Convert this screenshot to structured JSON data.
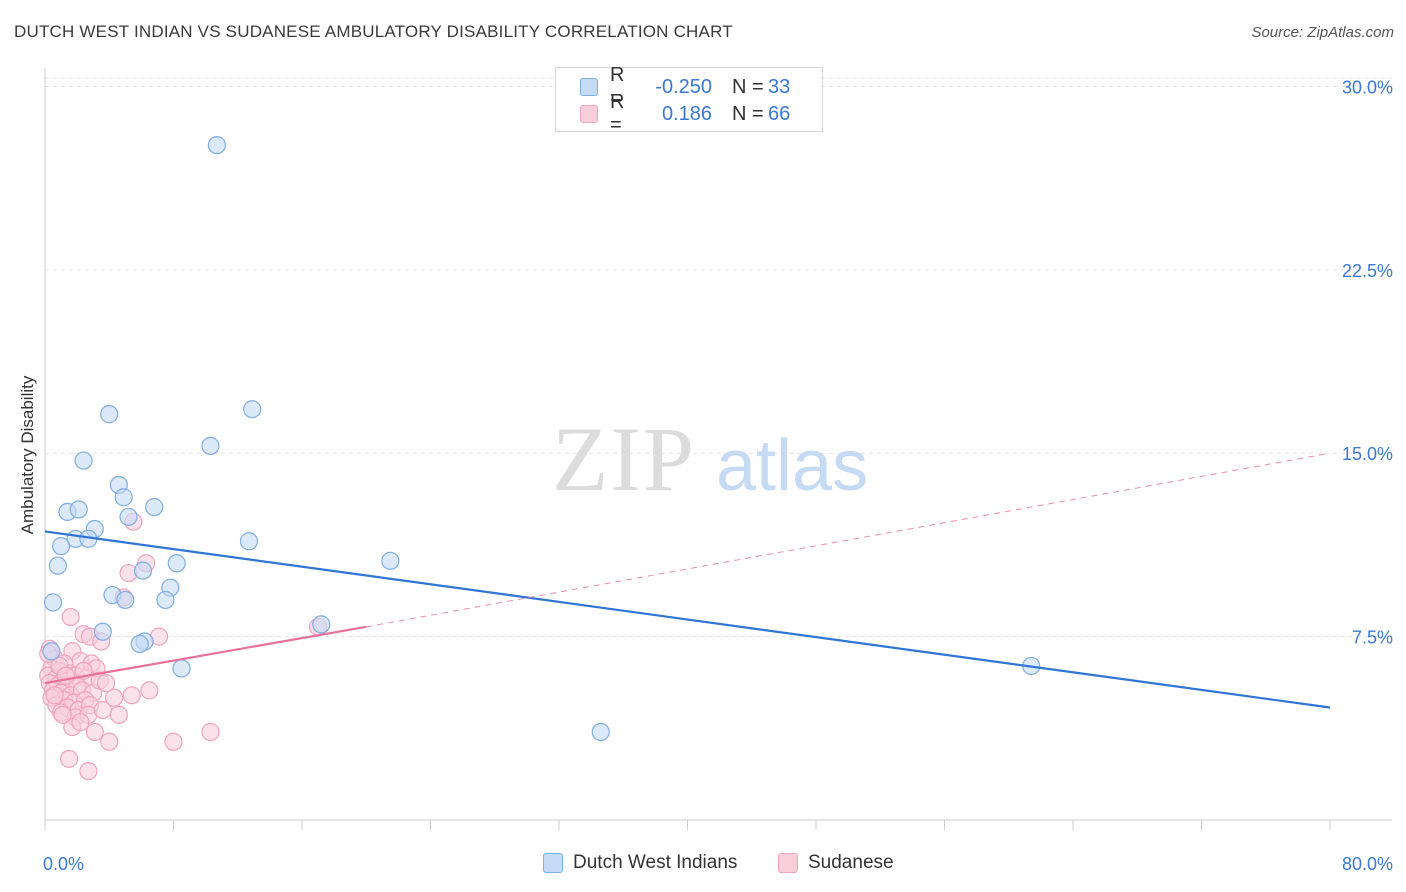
{
  "chart_data": {
    "type": "scatter",
    "title": "DUTCH WEST INDIAN VS SUDANESE AMBULATORY DISABILITY CORRELATION CHART",
    "source": "Source: ZipAtlas.com",
    "xlabel": "",
    "ylabel": "Ambulatory Disability",
    "xlim": [
      0,
      80
    ],
    "ylim": [
      0,
      31
    ],
    "x_tick_labels": [
      "0.0%",
      "80.0%"
    ],
    "y_ticks": [
      {
        "value": 7.5,
        "label": "7.5%"
      },
      {
        "value": 15.0,
        "label": "15.0%"
      },
      {
        "value": 22.5,
        "label": "22.5%"
      },
      {
        "value": 30.0,
        "label": "30.0%"
      }
    ],
    "grid": true,
    "watermark": "ZIPatlas",
    "legend": {
      "position": "top-center",
      "rows": [
        {
          "r_label": "R =",
          "r_value": "-0.250",
          "n_label": "N =",
          "n_value": "33"
        },
        {
          "r_label": "R =",
          "r_value": "0.186",
          "n_label": "N =",
          "n_value": "66"
        }
      ]
    },
    "series": [
      {
        "name": "Dutch West Indians",
        "color": "#7eaee6",
        "fill": "#c5dbf5",
        "line_color": "#2f75d6",
        "trend": {
          "x": [
            0,
            80
          ],
          "y": [
            11.8,
            4.6
          ]
        },
        "points": [
          [
            10.7,
            27.6
          ],
          [
            4.0,
            16.6
          ],
          [
            12.9,
            16.8
          ],
          [
            2.4,
            14.7
          ],
          [
            10.3,
            15.3
          ],
          [
            4.6,
            13.7
          ],
          [
            4.9,
            13.2
          ],
          [
            1.4,
            12.6
          ],
          [
            2.1,
            12.7
          ],
          [
            6.8,
            12.8
          ],
          [
            5.2,
            12.4
          ],
          [
            3.1,
            11.9
          ],
          [
            1.9,
            11.5
          ],
          [
            2.7,
            11.5
          ],
          [
            1.0,
            11.2
          ],
          [
            12.7,
            11.4
          ],
          [
            0.8,
            10.4
          ],
          [
            8.2,
            10.5
          ],
          [
            6.1,
            10.2
          ],
          [
            21.5,
            10.6
          ],
          [
            4.2,
            9.2
          ],
          [
            0.5,
            8.9
          ],
          [
            5.0,
            9.0
          ],
          [
            7.8,
            9.5
          ],
          [
            7.5,
            9.0
          ],
          [
            3.6,
            7.7
          ],
          [
            17.2,
            8.0
          ],
          [
            6.2,
            7.3
          ],
          [
            5.9,
            7.2
          ],
          [
            8.5,
            6.2
          ],
          [
            0.4,
            6.9
          ],
          [
            61.4,
            6.3
          ],
          [
            34.6,
            3.6
          ]
        ]
      },
      {
        "name": "Sudanese",
        "color": "#f0a3bc",
        "fill": "#f9cfdc",
        "line_color": "#e8709a",
        "trend": {
          "x": [
            0,
            20
          ],
          "y": [
            5.6,
            7.9
          ]
        },
        "trend_dashed": {
          "x": [
            20,
            80
          ],
          "y": [
            7.9,
            15.0
          ]
        },
        "points": [
          [
            5.5,
            12.2
          ],
          [
            6.3,
            10.5
          ],
          [
            5.2,
            10.1
          ],
          [
            4.9,
            9.1
          ],
          [
            1.6,
            8.3
          ],
          [
            17.0,
            7.9
          ],
          [
            2.4,
            7.6
          ],
          [
            2.8,
            7.5
          ],
          [
            7.1,
            7.5
          ],
          [
            3.5,
            7.3
          ],
          [
            0.3,
            7.0
          ],
          [
            1.7,
            6.9
          ],
          [
            0.6,
            6.6
          ],
          [
            2.2,
            6.5
          ],
          [
            1.2,
            6.4
          ],
          [
            2.9,
            6.4
          ],
          [
            0.4,
            6.2
          ],
          [
            0.9,
            6.1
          ],
          [
            1.5,
            6.0
          ],
          [
            3.2,
            6.2
          ],
          [
            0.2,
            5.9
          ],
          [
            0.7,
            5.8
          ],
          [
            1.1,
            5.7
          ],
          [
            1.9,
            5.9
          ],
          [
            2.6,
            5.8
          ],
          [
            0.3,
            5.6
          ],
          [
            0.8,
            5.5
          ],
          [
            1.3,
            5.4
          ],
          [
            2.0,
            5.5
          ],
          [
            0.5,
            5.3
          ],
          [
            1.0,
            5.2
          ],
          [
            1.6,
            5.1
          ],
          [
            2.3,
            5.3
          ],
          [
            3.0,
            5.2
          ],
          [
            0.4,
            5.0
          ],
          [
            1.2,
            4.9
          ],
          [
            1.8,
            4.8
          ],
          [
            2.5,
            4.9
          ],
          [
            0.7,
            4.7
          ],
          [
            1.4,
            4.6
          ],
          [
            2.1,
            4.5
          ],
          [
            2.8,
            4.7
          ],
          [
            1.0,
            4.4
          ],
          [
            1.9,
            4.2
          ],
          [
            2.7,
            4.3
          ],
          [
            3.6,
            4.5
          ],
          [
            4.6,
            4.3
          ],
          [
            5.4,
            5.1
          ],
          [
            4.3,
            5.0
          ],
          [
            6.5,
            5.3
          ],
          [
            1.7,
            3.8
          ],
          [
            3.1,
            3.6
          ],
          [
            10.3,
            3.6
          ],
          [
            4.0,
            3.2
          ],
          [
            8.0,
            3.2
          ],
          [
            1.5,
            2.5
          ],
          [
            2.7,
            2.0
          ],
          [
            0.2,
            6.8
          ],
          [
            0.9,
            6.3
          ],
          [
            1.3,
            5.9
          ],
          [
            2.4,
            6.1
          ],
          [
            3.4,
            5.7
          ],
          [
            0.6,
            5.1
          ],
          [
            1.1,
            4.3
          ],
          [
            2.2,
            4.0
          ],
          [
            3.8,
            5.6
          ]
        ]
      }
    ]
  }
}
